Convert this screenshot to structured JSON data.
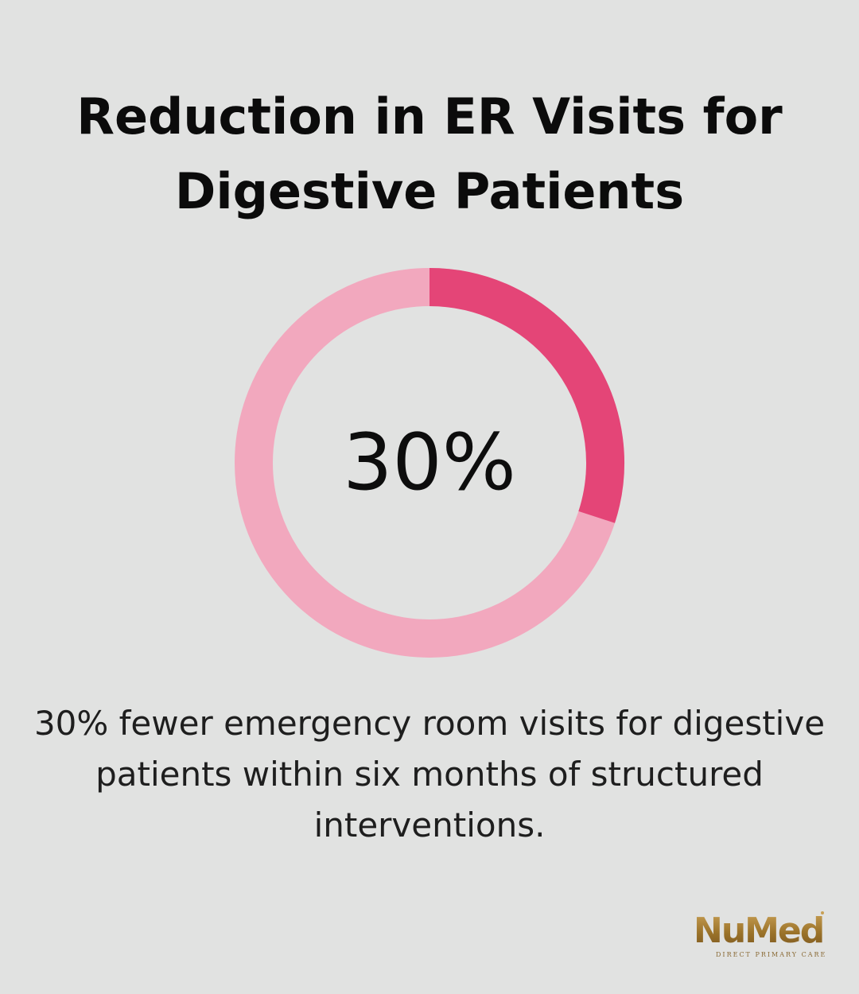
{
  "title_line1": "Reduction in ER Visits for",
  "title_line2": "Digestive Patients",
  "chart_data": {
    "type": "pie",
    "variant": "donut",
    "values": [
      30,
      70
    ],
    "center_label": "30%",
    "colors": [
      "#e44577",
      "#f2a8be"
    ]
  },
  "caption_line1": "30% fewer emergency room visits for digestive",
  "caption_line2": "patients within six months of structured",
  "caption_line3": "interventions.",
  "logo": {
    "word": "NuMed",
    "tagline": "DIRECT PRIMARY CARE"
  },
  "colors": {
    "background": "#e1e2e1",
    "accent": "#e44577",
    "track": "#f2a8be",
    "logo_gold": "#9a7229"
  }
}
